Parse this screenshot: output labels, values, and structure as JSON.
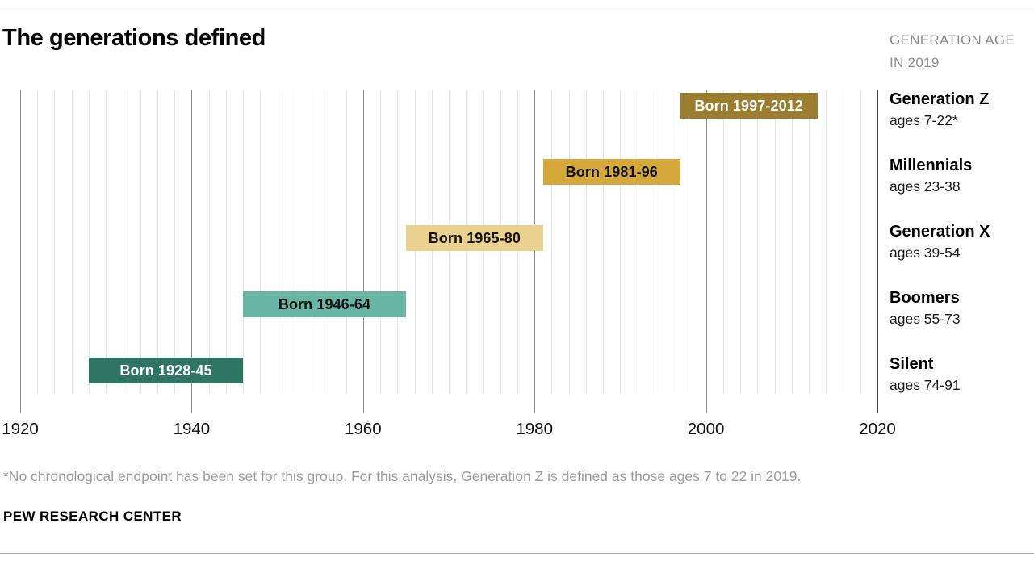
{
  "header": {
    "title": "The generations defined",
    "age_note_line1": "GENERATION AGE",
    "age_note_line2": "IN 2019"
  },
  "chart_data": {
    "type": "bar",
    "subtype": "timeline-gantt",
    "title": "The generations defined",
    "x_axis": {
      "min": 1920,
      "max": 2020,
      "tick_years": [
        1920,
        1940,
        1960,
        1980,
        2000,
        2020
      ],
      "minor_step": 2,
      "grid": true
    },
    "legend_position": "right",
    "rows": [
      {
        "generation": "Generation Z",
        "ages": "ages 7-22*",
        "bar_label": "Born 1997-2012",
        "start_year": 1997,
        "end_year": 2012,
        "color": "#9a7d2f",
        "text_color": "#ffffff"
      },
      {
        "generation": "Millennials",
        "ages": "ages 23-38",
        "bar_label": "Born 1981-96",
        "start_year": 1981,
        "end_year": 1996,
        "color": "#d4a83b",
        "text_color": "#111111"
      },
      {
        "generation": "Generation X",
        "ages": "ages 39-54",
        "bar_label": "Born 1965-80",
        "start_year": 1965,
        "end_year": 1980,
        "color": "#ebd18f",
        "text_color": "#111111"
      },
      {
        "generation": "Boomers",
        "ages": "ages 55-73",
        "bar_label": "Born 1946-64",
        "start_year": 1946,
        "end_year": 1964,
        "color": "#68b5a5",
        "text_color": "#111111"
      },
      {
        "generation": "Silent",
        "ages": "ages 74-91",
        "bar_label": "Born 1928-45",
        "start_year": 1928,
        "end_year": 1945,
        "color": "#2f7563",
        "text_color": "#ffffff"
      }
    ]
  },
  "footnote": "*No chronological endpoint has been set for this group. For this analysis, Generation Z is defined as those ages 7 to 22 in 2019.",
  "source": "PEW RESEARCH CENTER"
}
